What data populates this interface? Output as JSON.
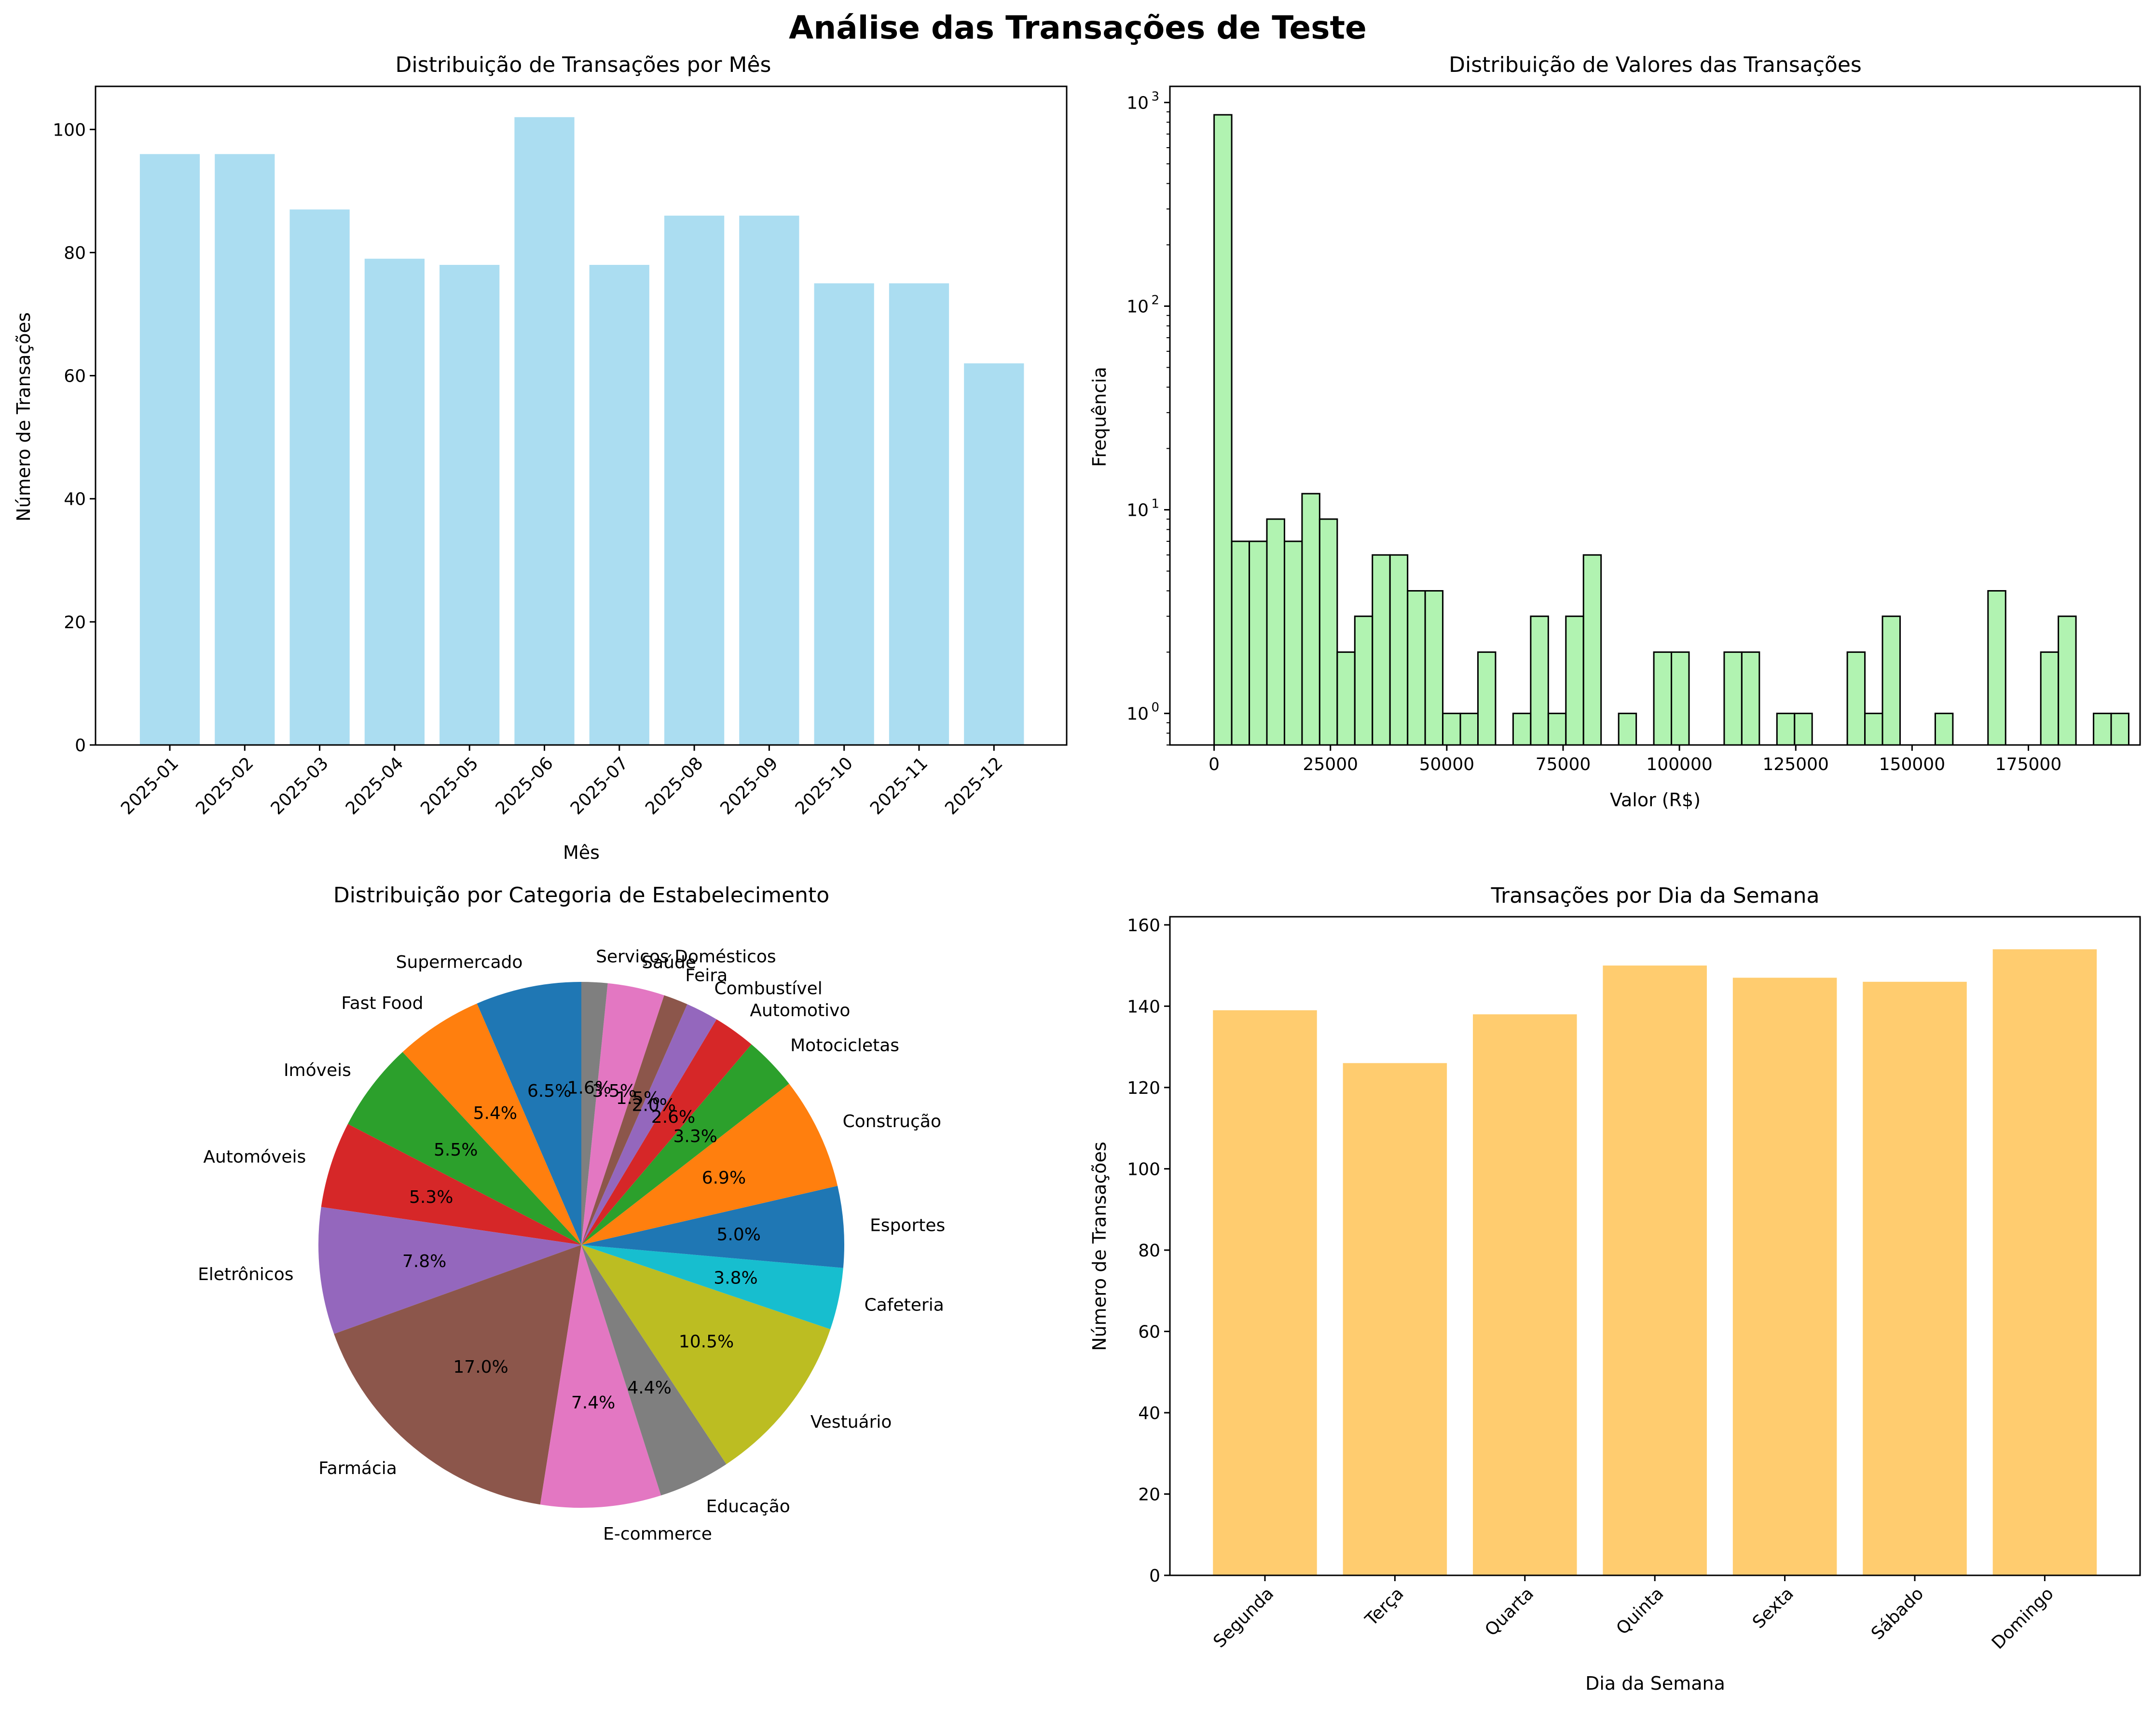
{
  "figure": {
    "title": "Análise das Transações de Teste"
  },
  "chart_data": [
    {
      "type": "bar",
      "title": "Distribuição de Transações por Mês",
      "xlabel": "Mês",
      "ylabel": "Número de Transações",
      "categories": [
        "2025-01",
        "2025-02",
        "2025-03",
        "2025-04",
        "2025-05",
        "2025-06",
        "2025-07",
        "2025-08",
        "2025-09",
        "2025-10",
        "2025-11",
        "2025-12"
      ],
      "values": [
        96,
        96,
        87,
        79,
        78,
        102,
        78,
        86,
        86,
        75,
        75,
        62
      ],
      "ylim": [
        0,
        107
      ],
      "yticks": [
        0,
        20,
        40,
        60,
        80,
        100
      ],
      "color": "#87CEEB",
      "grid": false
    },
    {
      "type": "bar",
      "subtype": "histogram",
      "title": "Distribuição de Valores das Transações",
      "xlabel": "Valor (R$)",
      "ylabel": "Frequência",
      "yscale": "log",
      "ylim": [
        0.7,
        1200
      ],
      "xlim": [
        -9500,
        199000
      ],
      "xticks": [
        0,
        25000,
        50000,
        75000,
        100000,
        125000,
        150000,
        175000
      ],
      "yticks": [
        {
          "value": 1,
          "label": "10",
          "exp": "0"
        },
        {
          "value": 10,
          "label": "10",
          "exp": "1"
        },
        {
          "value": 100,
          "label": "10",
          "exp": "2"
        },
        {
          "value": 1000,
          "label": "10",
          "exp": "3"
        }
      ],
      "bin_start": 0,
      "bin_width": 3780,
      "counts": [
        870,
        7,
        7,
        9,
        7,
        12,
        9,
        2,
        3,
        6,
        6,
        4,
        4,
        1,
        1,
        2,
        0,
        1,
        3,
        1,
        3,
        6,
        0,
        1,
        0,
        2,
        2,
        0,
        0,
        2,
        2,
        0,
        1,
        1,
        0,
        0,
        2,
        1,
        3,
        0,
        0,
        1,
        0,
        0,
        4,
        0,
        0,
        2,
        3,
        0,
        1,
        1
      ],
      "color": "#90EE90",
      "edgecolor": "#000000",
      "grid": false
    },
    {
      "type": "pie",
      "title": "Distribuição por Categoria de Estabelecimento",
      "slices": [
        {
          "label": "Supermercado",
          "value": 6.5,
          "pct": "6.5%",
          "color": "#1f77b4"
        },
        {
          "label": "Fast Food",
          "value": 5.4,
          "pct": "5.4%",
          "color": "#ff7f0e"
        },
        {
          "label": "Imóveis",
          "value": 5.5,
          "pct": "5.5%",
          "color": "#2ca02c"
        },
        {
          "label": "Automóveis",
          "value": 5.3,
          "pct": "5.3%",
          "color": "#d62728"
        },
        {
          "label": "Eletrônicos",
          "value": 7.8,
          "pct": "7.8%",
          "color": "#9467bd"
        },
        {
          "label": "Farmácia",
          "value": 17.0,
          "pct": "17.0%",
          "color": "#8c564b"
        },
        {
          "label": "E-commerce",
          "value": 7.4,
          "pct": "7.4%",
          "color": "#e377c2"
        },
        {
          "label": "Educação",
          "value": 4.4,
          "pct": "4.4%",
          "color": "#7f7f7f"
        },
        {
          "label": "Vestuário",
          "value": 10.5,
          "pct": "10.5%",
          "color": "#bcbd22"
        },
        {
          "label": "Cafeteria",
          "value": 3.8,
          "pct": "3.8%",
          "color": "#17becf"
        },
        {
          "label": "Esportes",
          "value": 5.0,
          "pct": "5.0%",
          "color": "#1f77b4"
        },
        {
          "label": "Construção",
          "value": 6.9,
          "pct": "6.9%",
          "color": "#ff7f0e"
        },
        {
          "label": "Motocicletas",
          "value": 3.3,
          "pct": "3.3%",
          "color": "#2ca02c"
        },
        {
          "label": "Automotivo",
          "value": 2.6,
          "pct": "2.6%",
          "color": "#d62728"
        },
        {
          "label": "Combustível",
          "value": 2.0,
          "pct": "2.0%",
          "color": "#9467bd"
        },
        {
          "label": "Feira",
          "value": 1.5,
          "pct": "1.5%",
          "color": "#8c564b"
        },
        {
          "label": "Saúde",
          "value": 3.5,
          "pct": "3.5%",
          "color": "#e377c2"
        },
        {
          "label": "Serviços Domésticos",
          "value": 1.6,
          "pct": "1.6%",
          "color": "#7f7f7f"
        }
      ]
    },
    {
      "type": "bar",
      "title": "Transações por Dia da Semana",
      "xlabel": "Dia da Semana",
      "ylabel": "Número de Transações",
      "categories": [
        "Segunda",
        "Terça",
        "Quarta",
        "Quinta",
        "Sexta",
        "Sábado",
        "Domingo"
      ],
      "values": [
        139,
        126,
        138,
        150,
        147,
        146,
        154
      ],
      "ylim": [
        0,
        162
      ],
      "yticks": [
        0,
        20,
        40,
        60,
        80,
        100,
        120,
        140,
        160
      ],
      "color": "#FFB732",
      "grid": false
    }
  ]
}
